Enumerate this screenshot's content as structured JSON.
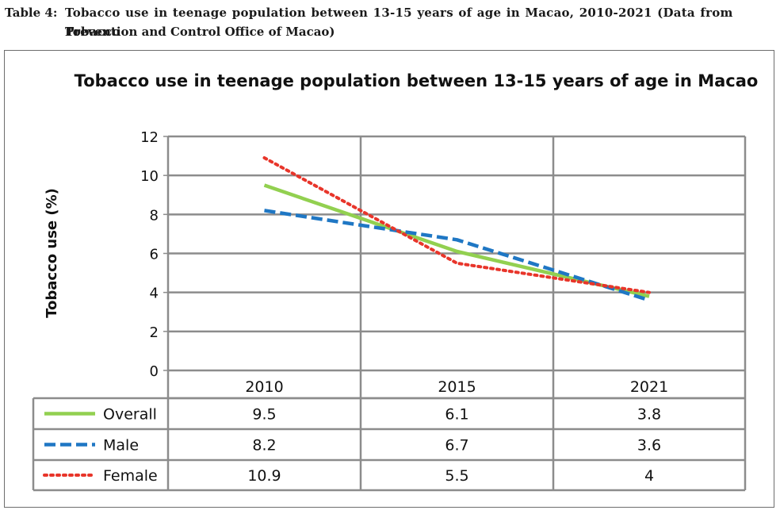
{
  "caption": {
    "label": "Table 4:",
    "line1": "Tobacco use in teenage population between 13-15 years of age in Macao, 2010-2021 (Data from Tobacco",
    "line2": "Prevention and Control Office of Macao)"
  },
  "chart_data": {
    "type": "line",
    "title": "Tobacco use in teenage population between 13-15 years of age in Macao",
    "xlabel": "",
    "ylabel": "Tobacco use (%)",
    "categories": [
      "2010",
      "2015",
      "2021"
    ],
    "ylim": [
      0,
      12
    ],
    "yticks": [
      "0",
      "2",
      "4",
      "6",
      "8",
      "10",
      "12"
    ],
    "grid": true,
    "legend": "data table below chart",
    "series": [
      {
        "name": "Overall",
        "values": [
          9.5,
          6.1,
          3.8
        ],
        "labels": [
          "9.5",
          "6.1",
          "3.8"
        ],
        "color": "#92d050",
        "style": "solid"
      },
      {
        "name": "Male",
        "values": [
          8.2,
          6.7,
          3.6
        ],
        "labels": [
          "8.2",
          "6.7",
          "3.6"
        ],
        "color": "#1f77c4",
        "style": "dashed"
      },
      {
        "name": "Female",
        "values": [
          10.9,
          5.5,
          4
        ],
        "labels": [
          "10.9",
          "5.5",
          "4"
        ],
        "color": "#e8352a",
        "style": "dotted"
      }
    ]
  }
}
